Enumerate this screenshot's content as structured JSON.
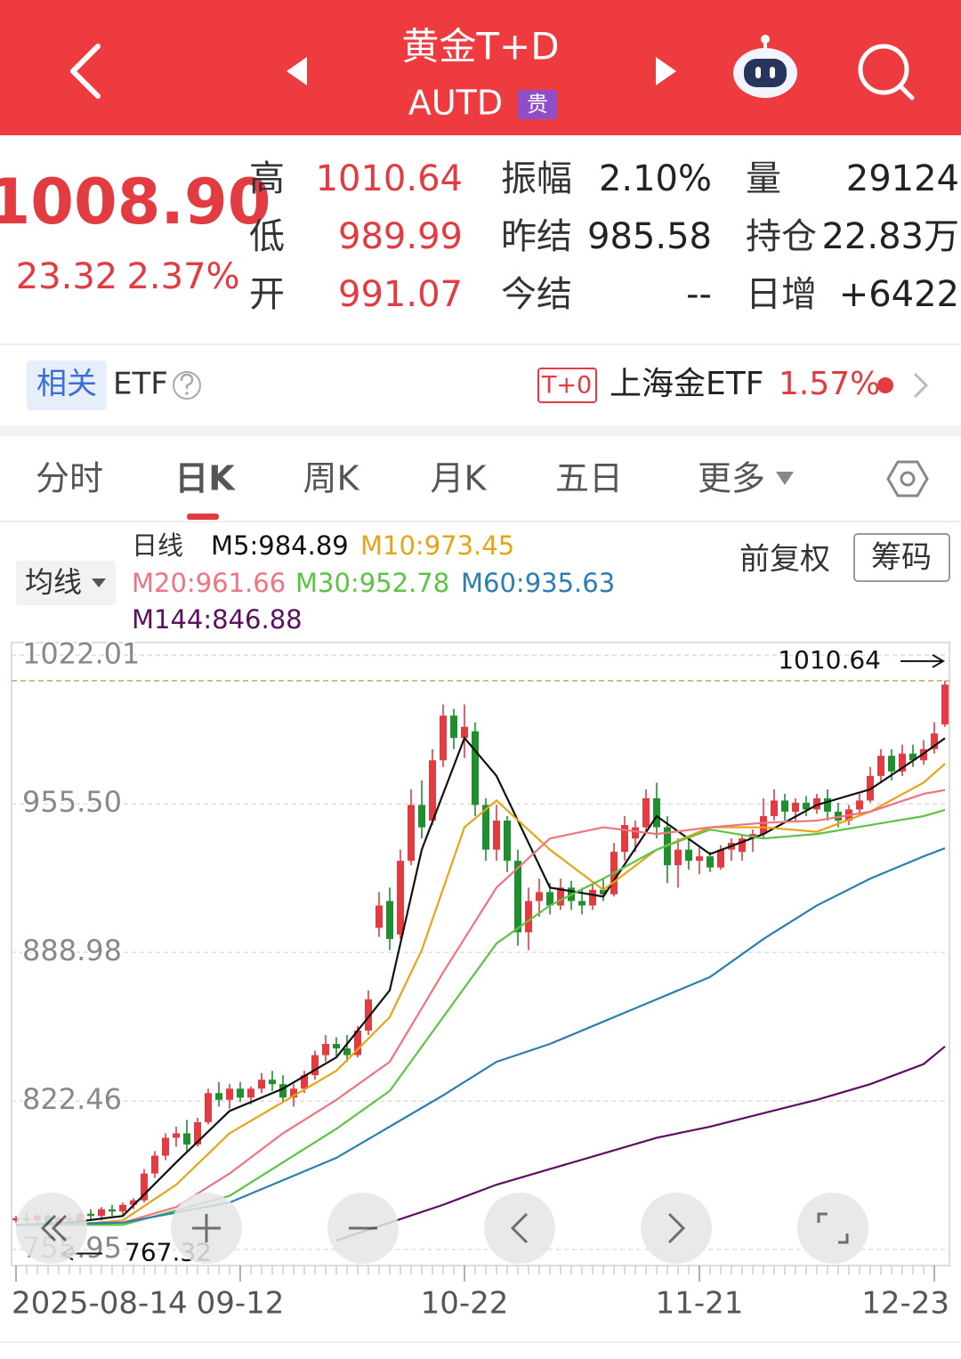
{
  "header": {
    "title": "黄金T+D",
    "code": "AUTD",
    "badge": "贵"
  },
  "quote": {
    "price": "1008.90",
    "change": "23.32",
    "change_pct": "2.37%",
    "stats": [
      [
        "高",
        "1010.64"
      ],
      [
        "振幅",
        "2.10%"
      ],
      [
        "量",
        "29124"
      ],
      [
        "低",
        "989.99"
      ],
      [
        "昨结",
        "985.58"
      ],
      [
        "持仓",
        "22.83万"
      ],
      [
        "开",
        "991.07"
      ],
      [
        "今结",
        "--"
      ],
      [
        "日增",
        "+6422"
      ]
    ]
  },
  "etf": {
    "tag": "相关",
    "label": "ETF",
    "badge": "T+0",
    "name": "上海金ETF",
    "change": "1.57%"
  },
  "tabs": [
    "分时",
    "日K",
    "周K",
    "月K",
    "五日",
    "更多"
  ],
  "chart_header": {
    "ma_menu": "均线",
    "period": "日线",
    "adjust": "前复权",
    "chips": "筹码"
  },
  "chart_data": {
    "type": "candlestick",
    "up_color": "#e23b41",
    "down_color": "#1f8f2f",
    "ylim": [
      749.6,
      1027.7
    ],
    "yticks": [
      1022.01,
      {
        "value": 955.5,
        "label": "955.50"
      },
      888.98,
      822.46,
      755.95
    ],
    "grid": true,
    "high_mark": 1010.64,
    "low_mark": 767.32,
    "categories": [
      "2025-08-14",
      null,
      null,
      null,
      null,
      null,
      null,
      null,
      null,
      null,
      null,
      null,
      null,
      null,
      null,
      null,
      null,
      null,
      null,
      null,
      null,
      "09-12",
      null,
      null,
      null,
      null,
      null,
      null,
      null,
      null,
      null,
      null,
      null,
      null,
      null,
      null,
      null,
      null,
      null,
      null,
      null,
      null,
      "10-22",
      null,
      null,
      null,
      null,
      null,
      null,
      null,
      null,
      null,
      null,
      null,
      null,
      null,
      null,
      null,
      null,
      null,
      null,
      null,
      null,
      null,
      "11-21",
      null,
      null,
      null,
      null,
      null,
      null,
      null,
      null,
      null,
      null,
      null,
      null,
      null,
      null,
      null,
      null,
      null,
      null,
      null,
      null,
      null,
      "12-23"
    ],
    "ohlc": [
      [
        769,
        771,
        768,
        770
      ],
      [
        770,
        772,
        768,
        769
      ],
      [
        769,
        772,
        768,
        771
      ],
      [
        771,
        772,
        767.32,
        768
      ],
      [
        768,
        771,
        768,
        770
      ],
      [
        770,
        772,
        768,
        769
      ],
      [
        769,
        773,
        768,
        772
      ],
      [
        772,
        774,
        769,
        771
      ],
      [
        771,
        775,
        769,
        774
      ],
      [
        774,
        776,
        771,
        773
      ],
      [
        773,
        777,
        771,
        776
      ],
      [
        776,
        779,
        774,
        778
      ],
      [
        778,
        792,
        777,
        790
      ],
      [
        790,
        800,
        788,
        798
      ],
      [
        798,
        808,
        796,
        806
      ],
      [
        806,
        811,
        802,
        808
      ],
      [
        808,
        814,
        800,
        803
      ],
      [
        803,
        815,
        802,
        813
      ],
      [
        813,
        828,
        812,
        826
      ],
      [
        826,
        831,
        820,
        823
      ],
      [
        823,
        830,
        819,
        828
      ],
      [
        828,
        831,
        822,
        824
      ],
      [
        824,
        829,
        821,
        828
      ],
      [
        828,
        835,
        826,
        832
      ],
      [
        832,
        836,
        827,
        830
      ],
      [
        830,
        834,
        822,
        824
      ],
      [
        824,
        830,
        820,
        828
      ],
      [
        828,
        836,
        826,
        834
      ],
      [
        834,
        845,
        832,
        843
      ],
      [
        843,
        852,
        840,
        848
      ],
      [
        848,
        851,
        842,
        846
      ],
      [
        846,
        852,
        840,
        843
      ],
      [
        843,
        856,
        842,
        854
      ],
      [
        854,
        872,
        852,
        868
      ],
      [
        900,
        916,
        896,
        910
      ],
      [
        912,
        918,
        890,
        895
      ],
      [
        897,
        935,
        895,
        930
      ],
      [
        930,
        962,
        928,
        955
      ],
      [
        955,
        966,
        940,
        945
      ],
      [
        948,
        980,
        946,
        975
      ],
      [
        975,
        1000,
        972,
        995
      ],
      [
        995,
        998,
        980,
        985
      ],
      [
        985,
        1000,
        976,
        990
      ],
      [
        988,
        992,
        950,
        955
      ],
      [
        955,
        958,
        930,
        935
      ],
      [
        935,
        955,
        930,
        948
      ],
      [
        948,
        950,
        925,
        930
      ],
      [
        930,
        935,
        892,
        898
      ],
      [
        898,
        918,
        890,
        912
      ],
      [
        912,
        922,
        905,
        916
      ],
      [
        916,
        920,
        906,
        910
      ],
      [
        910,
        922,
        908,
        918
      ],
      [
        918,
        921,
        908,
        912
      ],
      [
        912,
        918,
        906,
        910
      ],
      [
        910,
        920,
        908,
        917
      ],
      [
        917,
        922,
        912,
        915
      ],
      [
        915,
        938,
        914,
        934
      ],
      [
        934,
        950,
        930,
        946
      ],
      [
        940,
        948,
        934,
        945
      ],
      [
        945,
        962,
        943,
        958
      ],
      [
        958,
        965,
        940,
        945
      ],
      [
        945,
        950,
        920,
        928
      ],
      [
        928,
        940,
        918,
        935
      ],
      [
        935,
        940,
        926,
        930
      ],
      [
        930,
        936,
        924,
        932
      ],
      [
        932,
        934,
        925,
        927
      ],
      [
        927,
        937,
        926,
        935
      ],
      [
        935,
        940,
        930,
        938
      ],
      [
        934,
        942,
        930,
        940
      ],
      [
        940,
        944,
        934,
        942
      ],
      [
        942,
        958,
        940,
        950
      ],
      [
        950,
        962,
        948,
        957
      ],
      [
        957,
        960,
        948,
        952
      ],
      [
        952,
        958,
        948,
        956
      ],
      [
        956,
        959,
        950,
        953
      ],
      [
        953,
        960,
        951,
        958
      ],
      [
        958,
        962,
        948,
        952
      ],
      [
        952,
        956,
        945,
        948
      ],
      [
        948,
        955,
        946,
        953
      ],
      [
        953,
        960,
        950,
        957
      ],
      [
        957,
        972,
        956,
        968
      ],
      [
        968,
        980,
        965,
        977
      ],
      [
        977,
        980,
        966,
        970
      ],
      [
        970,
        982,
        968,
        978
      ],
      [
        978,
        982,
        972,
        975
      ],
      [
        975,
        984,
        973,
        980
      ],
      [
        980,
        992,
        978,
        987
      ],
      [
        991.07,
        1010.64,
        989.99,
        1008.9
      ]
    ],
    "series": [
      {
        "name": "M5:984.89",
        "color": "#111111",
        "x": [
          0,
          5,
          10,
          15,
          20,
          25,
          30,
          35,
          38,
          42,
          45,
          50,
          55,
          60,
          65,
          70,
          75,
          80,
          85,
          87
        ],
        "values": [
          767,
          768,
          771,
          795,
          818,
          828,
          842,
          872,
          935,
          985,
          968,
          918,
          914,
          950,
          933,
          942,
          955,
          962,
          978,
          984.89
        ]
      },
      {
        "name": "M10:973.45",
        "color": "#e8a317",
        "x": [
          0,
          5,
          10,
          15,
          20,
          25,
          30,
          35,
          38,
          42,
          45,
          50,
          55,
          60,
          65,
          70,
          75,
          80,
          85,
          87
        ],
        "values": [
          767,
          767,
          769,
          785,
          808,
          822,
          836,
          860,
          890,
          945,
          957,
          935,
          917,
          935,
          945,
          945,
          943,
          952,
          965,
          973.45
        ]
      },
      {
        "name": "M20:961.66",
        "color": "#f0737f",
        "x": [
          0,
          10,
          15,
          20,
          25,
          30,
          35,
          40,
          45,
          50,
          55,
          60,
          65,
          70,
          75,
          80,
          85,
          87
        ],
        "values": [
          767,
          768,
          775,
          790,
          808,
          823,
          840,
          880,
          918,
          940,
          945,
          942,
          945,
          947,
          948,
          952,
          960,
          961.66
        ]
      },
      {
        "name": "M30:952.78",
        "color": "#5cc445",
        "x": [
          0,
          10,
          20,
          25,
          30,
          35,
          40,
          45,
          50,
          55,
          60,
          65,
          70,
          75,
          80,
          85,
          87
        ],
        "values": [
          767,
          767,
          780,
          795,
          810,
          827,
          860,
          893,
          910,
          922,
          935,
          944,
          940,
          942,
          946,
          950,
          952.78
        ]
      },
      {
        "name": "M60:935.63",
        "color": "#2a7fb0",
        "x": [
          0,
          10,
          20,
          30,
          40,
          45,
          50,
          55,
          60,
          65,
          70,
          75,
          80,
          85,
          87
        ],
        "values": [
          767,
          768,
          777,
          797,
          825,
          840,
          848,
          858,
          868,
          878,
          895,
          910,
          922,
          932,
          935.63
        ]
      },
      {
        "name": "M144:846.88",
        "color": "#5a1060",
        "x": [
          30,
          35,
          40,
          45,
          50,
          55,
          60,
          65,
          70,
          75,
          80,
          85,
          87
        ],
        "values": [
          760,
          768,
          776,
          785,
          792,
          799,
          806,
          811,
          817,
          823,
          830,
          839,
          846.88
        ]
      }
    ]
  }
}
